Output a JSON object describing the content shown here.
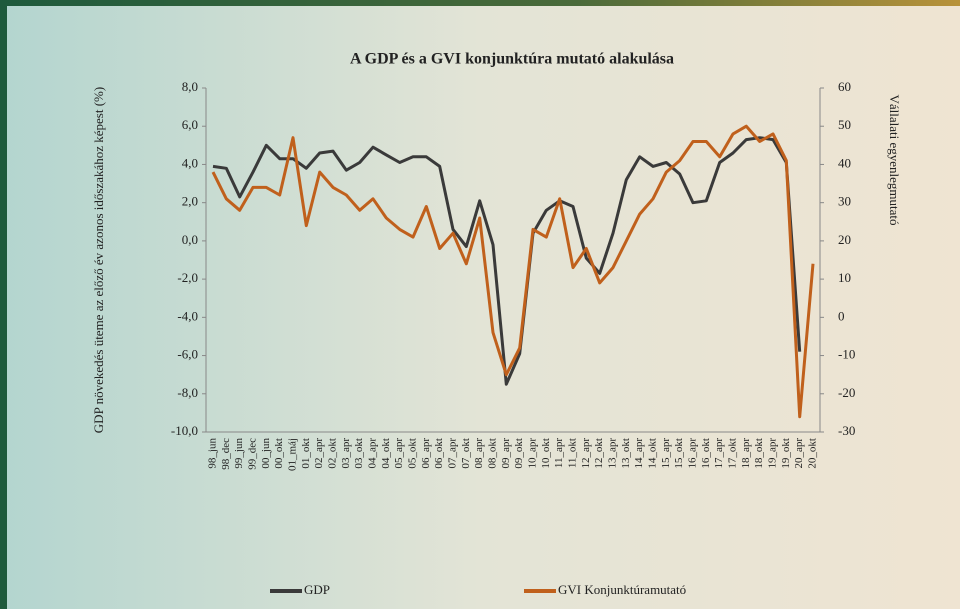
{
  "chart_data": {
    "type": "line",
    "title": "A GDP és a GVI konjunktúra mutató alakulása",
    "ylabel": "GDP növekedés üteme az előző év azonos időszakához képest (%)",
    "y2label": "Vállalati egyenlegmutató",
    "categories": [
      "98_jun",
      "98_dec",
      "99_jun",
      "99_dec",
      "00_jun",
      "00_okt",
      "01_máj",
      "01_okt",
      "02_apr",
      "02_okt",
      "03_apr",
      "03_okt",
      "04_apr",
      "04_okt",
      "05_apr",
      "05_okt",
      "06_apr",
      "06_okt",
      "07_apr",
      "07_okt",
      "08_apr",
      "08_okt",
      "09_apr",
      "09_okt",
      "10_apr",
      "10_okt",
      "11_apr",
      "11_okt",
      "12_apr",
      "12_okt",
      "13_apr",
      "13_okt",
      "14_apr",
      "14_okt",
      "15_apr",
      "15_okt",
      "16_apr",
      "16_okt",
      "17_apr",
      "17_okt",
      "18_apr",
      "18_okt",
      "19_apr",
      "19_okt",
      "20_apr",
      "20_okt"
    ],
    "series": [
      {
        "name": "GDP",
        "color": "#3a3a3a",
        "values": [
          3.9,
          3.8,
          2.3,
          3.6,
          5.0,
          4.3,
          4.3,
          3.8,
          4.6,
          4.7,
          3.7,
          4.1,
          4.9,
          4.5,
          4.1,
          4.4,
          4.4,
          3.9,
          0.6,
          -0.3,
          2.1,
          -0.2,
          -7.5,
          -5.9,
          0.4,
          1.6,
          2.1,
          1.8,
          -0.9,
          -1.7,
          0.4,
          3.2,
          4.4,
          3.9,
          4.1,
          3.5,
          2.0,
          2.1,
          4.1,
          4.6,
          5.3,
          5.4,
          5.3,
          4.1,
          -5.8,
          null
        ]
      },
      {
        "name": "GVI Konjunktúramutató",
        "color": "#c0601c",
        "axis": "y2",
        "values": [
          38,
          31,
          28,
          34,
          34,
          32,
          47,
          24,
          38,
          34,
          32,
          28,
          31,
          26,
          23,
          21,
          29,
          18,
          22,
          14,
          26,
          -4,
          -15,
          -8,
          23,
          21,
          31,
          13,
          18,
          9,
          13,
          20,
          27,
          31,
          38,
          41,
          46,
          46,
          42,
          48,
          50,
          46,
          48,
          41,
          -26,
          14
        ]
      }
    ],
    "ylim": [
      -10,
      8
    ],
    "yticks": [
      {
        "value": -10,
        "label": "-10,0"
      },
      {
        "value": -8,
        "label": "-8,0"
      },
      {
        "value": -6,
        "label": "-6,0"
      },
      {
        "value": -4,
        "label": "-4,0"
      },
      {
        "value": -2,
        "label": "-2,0"
      },
      {
        "value": 0,
        "label": "0,0"
      },
      {
        "value": 2,
        "label": "2,0"
      },
      {
        "value": 4,
        "label": "4,0"
      },
      {
        "value": 6,
        "label": "6,0"
      },
      {
        "value": 8,
        "label": "8,0"
      }
    ],
    "y2lim": [
      -30,
      60
    ],
    "y2ticks": [
      -30,
      -20,
      -10,
      0,
      10,
      20,
      30,
      40,
      50,
      60
    ],
    "grid": false,
    "legend": "bottom"
  }
}
